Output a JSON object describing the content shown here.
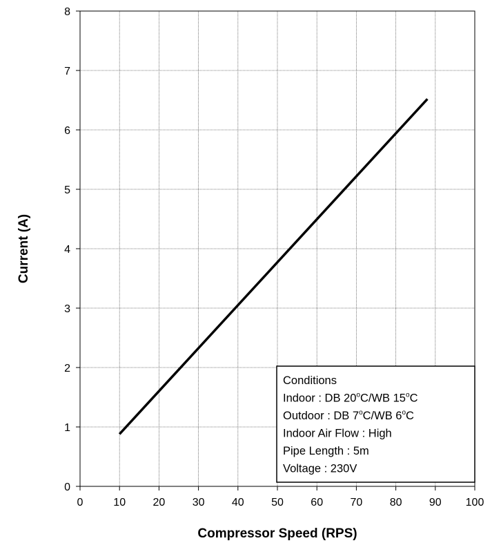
{
  "chart_data": {
    "type": "line",
    "title": "",
    "xlabel": "Compressor Speed (RPS)",
    "ylabel": "Current (A)",
    "xlim": [
      0,
      100
    ],
    "ylim": [
      0,
      8
    ],
    "xticks": [
      0,
      10,
      20,
      30,
      40,
      50,
      60,
      70,
      80,
      90,
      100
    ],
    "yticks": [
      0,
      1,
      2,
      3,
      4,
      5,
      6,
      7,
      8
    ],
    "grid": true,
    "grid_style": "dotted",
    "series": [
      {
        "x": [
          10,
          88
        ],
        "y": [
          0.88,
          6.52
        ],
        "color": "#000000"
      }
    ],
    "annotation_box": {
      "placement": "bottom-right",
      "lines": [
        {
          "text": "Conditions"
        },
        {
          "parts": [
            {
              "t": "Indoor : DB 20"
            },
            {
              "t": "o",
              "sup": true
            },
            {
              "t": "C/WB 15"
            },
            {
              "t": "o",
              "sup": true
            },
            {
              "t": "C"
            }
          ]
        },
        {
          "parts": [
            {
              "t": "Outdoor : DB 7"
            },
            {
              "t": "o",
              "sup": true
            },
            {
              "t": "C/WB 6"
            },
            {
              "t": "o",
              "sup": true
            },
            {
              "t": "C"
            }
          ]
        },
        {
          "text": "Indoor Air Flow : High"
        },
        {
          "text": "Pipe Length : 5m"
        },
        {
          "text": "Voltage : 230V"
        }
      ]
    }
  }
}
